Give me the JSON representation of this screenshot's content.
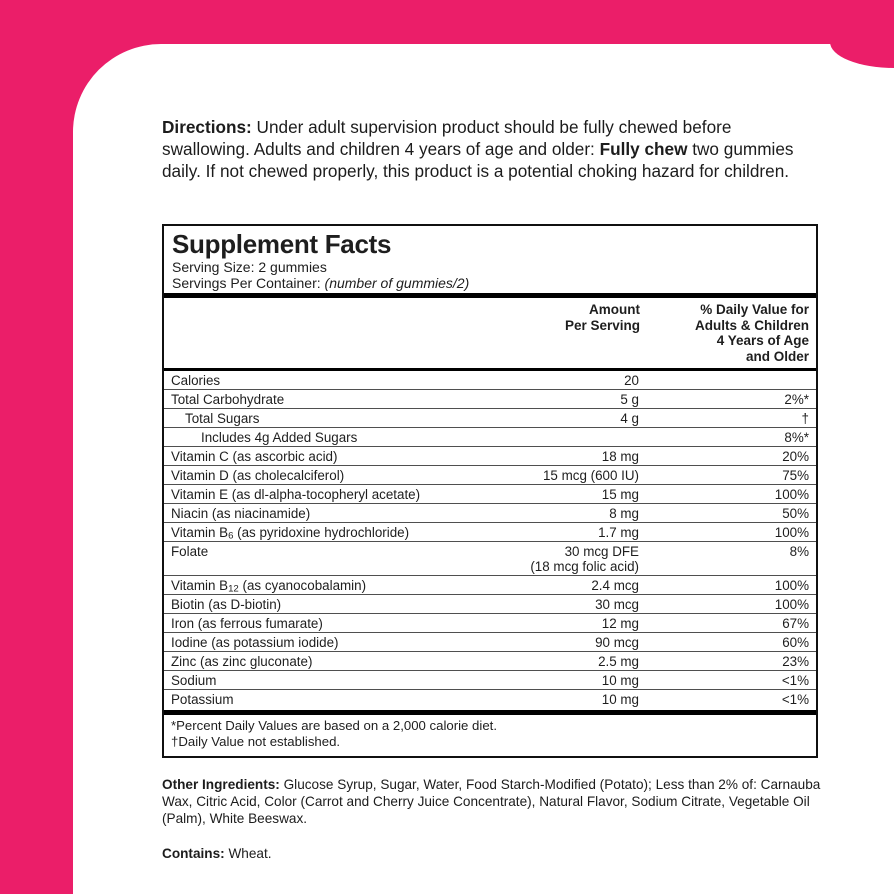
{
  "colors": {
    "brand_pink": "#EB1E69"
  },
  "directions": {
    "label": "Directions:",
    "text_1": " Under adult supervision product should be fully chewed before swallowing. Adults and children 4 years of age and older: ",
    "bold_2": "Fully chew",
    "text_3": " two gummies daily. If not chewed properly, this product is a potential choking hazard for children."
  },
  "panel": {
    "title": "Supplement Facts",
    "serving_size": "Serving Size: 2 gummies",
    "servings_prefix": "Servings Per Container: ",
    "servings_italic": "(number of gummies/2)",
    "col_amount": "Amount\nPer Serving",
    "col_dv": "% Daily Value for\nAdults & Children\n4 Years of Age\nand Older",
    "rows": [
      {
        "pre": "Calories",
        "sub": "",
        "post": "",
        "amount": "20",
        "amount2": "",
        "dv": "",
        "indent": 0
      },
      {
        "pre": "Total Carbohydrate",
        "sub": "",
        "post": "",
        "amount": "5 g",
        "amount2": "",
        "dv": "2%*",
        "indent": 0
      },
      {
        "pre": "Total Sugars",
        "sub": "",
        "post": "",
        "amount": "4 g",
        "amount2": "",
        "dv": "†",
        "indent": 1
      },
      {
        "pre": "Includes 4g Added Sugars",
        "sub": "",
        "post": "",
        "amount": "",
        "amount2": "",
        "dv": "8%*",
        "indent": 2
      },
      {
        "pre": "Vitamin C (as ascorbic acid)",
        "sub": "",
        "post": "",
        "amount": "18 mg",
        "amount2": "",
        "dv": "20%",
        "indent": 0
      },
      {
        "pre": "Vitamin D (as cholecalciferol)",
        "sub": "",
        "post": "",
        "amount": "15 mcg (600 IU)",
        "amount2": "",
        "dv": "75%",
        "indent": 0
      },
      {
        "pre": "Vitamin E (as dl-alpha-tocopheryl acetate)",
        "sub": "",
        "post": "",
        "amount": "15 mg",
        "amount2": "",
        "dv": "100%",
        "indent": 0
      },
      {
        "pre": "Niacin (as niacinamide)",
        "sub": "",
        "post": "",
        "amount": "8 mg",
        "amount2": "",
        "dv": "50%",
        "indent": 0
      },
      {
        "pre": "Vitamin B",
        "sub": "6",
        "post": " (as pyridoxine hydrochloride)",
        "amount": "1.7 mg",
        "amount2": "",
        "dv": "100%",
        "indent": 0
      },
      {
        "pre": "Folate",
        "sub": "",
        "post": "",
        "amount": "30 mcg DFE",
        "amount2": "(18 mcg folic acid)",
        "dv": "8%",
        "indent": 0
      },
      {
        "pre": "Vitamin B",
        "sub": "12",
        "post": " (as cyanocobalamin)",
        "amount": "2.4 mcg",
        "amount2": "",
        "dv": "100%",
        "indent": 0
      },
      {
        "pre": "Biotin (as D-biotin)",
        "sub": "",
        "post": "",
        "amount": "30 mcg",
        "amount2": "",
        "dv": "100%",
        "indent": 0
      },
      {
        "pre": "Iron (as ferrous fumarate)",
        "sub": "",
        "post": "",
        "amount": "12 mg",
        "amount2": "",
        "dv": "67%",
        "indent": 0
      },
      {
        "pre": "Iodine (as potassium iodide)",
        "sub": "",
        "post": "",
        "amount": "90 mcg",
        "amount2": "",
        "dv": "60%",
        "indent": 0
      },
      {
        "pre": "Zinc (as zinc gluconate)",
        "sub": "",
        "post": "",
        "amount": "2.5 mg",
        "amount2": "",
        "dv": "23%",
        "indent": 0
      },
      {
        "pre": "Sodium",
        "sub": "",
        "post": "",
        "amount": "10 mg",
        "amount2": "",
        "dv": "<1%",
        "indent": 0
      },
      {
        "pre": "Potassium",
        "sub": "",
        "post": "",
        "amount": "10 mg",
        "amount2": "",
        "dv": "<1%",
        "indent": 0
      }
    ],
    "footnote_1": "*Percent Daily Values are based on a 2,000 calorie diet.",
    "footnote_2": "†Daily Value not established."
  },
  "other_ingredients": {
    "label": "Other Ingredients:",
    "text": " Glucose Syrup, Sugar, Water, Food Starch-Modified (Potato); Less than 2% of: Carnauba Wax, Citric Acid, Color (Carrot and Cherry Juice Concentrate), Natural Flavor, Sodium Citrate, Vegetable Oil (Palm), White Beeswax."
  },
  "contains": {
    "label": "Contains:",
    "text": " Wheat."
  }
}
